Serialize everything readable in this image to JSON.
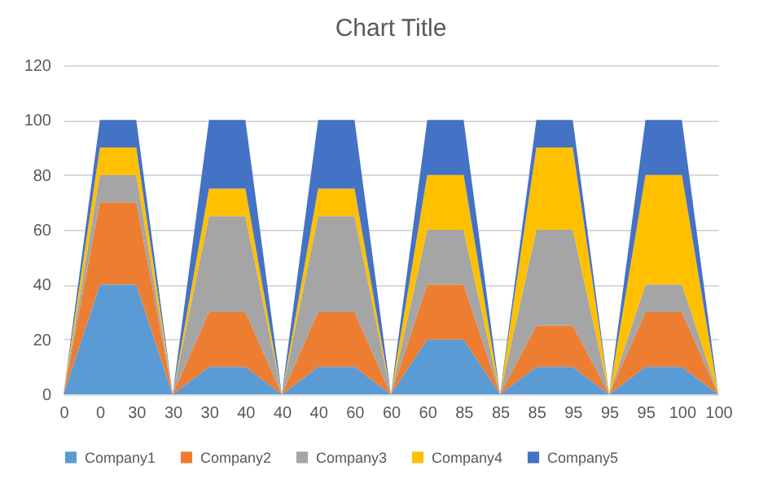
{
  "chart_data": {
    "type": "area",
    "title": "Chart Title",
    "stacked": true,
    "categories": [
      "0",
      "0",
      "30",
      "30",
      "30",
      "40",
      "40",
      "40",
      "60",
      "60",
      "60",
      "85",
      "85",
      "85",
      "95",
      "95",
      "95",
      "100",
      "100"
    ],
    "series": [
      {
        "name": "Company1",
        "color": "#5b9bd5",
        "values": [
          0,
          40,
          40,
          0,
          10,
          10,
          0,
          10,
          10,
          0,
          20,
          20,
          0,
          10,
          10,
          0,
          10,
          10,
          0
        ]
      },
      {
        "name": "Company2",
        "color": "#ed7d31",
        "values": [
          0,
          30,
          30,
          0,
          20,
          20,
          0,
          20,
          20,
          0,
          20,
          20,
          0,
          15,
          15,
          0,
          20,
          20,
          0
        ]
      },
      {
        "name": "Company3",
        "color": "#a5a5a5",
        "values": [
          0,
          10,
          10,
          0,
          35,
          35,
          0,
          35,
          35,
          0,
          20,
          20,
          0,
          35,
          35,
          0,
          10,
          10,
          0
        ]
      },
      {
        "name": "Company4",
        "color": "#ffc000",
        "values": [
          0,
          10,
          10,
          0,
          10,
          10,
          0,
          10,
          10,
          0,
          20,
          20,
          0,
          30,
          30,
          0,
          40,
          40,
          0
        ]
      },
      {
        "name": "Company5",
        "color": "#4472c4",
        "values": [
          0,
          10,
          10,
          0,
          25,
          25,
          0,
          25,
          25,
          0,
          20,
          20,
          0,
          10,
          10,
          0,
          20,
          20,
          0
        ]
      }
    ],
    "ylim": [
      0,
      120
    ],
    "yticks": [
      0,
      20,
      40,
      60,
      80,
      100,
      120
    ],
    "grid": "y",
    "legend": "bottom"
  }
}
